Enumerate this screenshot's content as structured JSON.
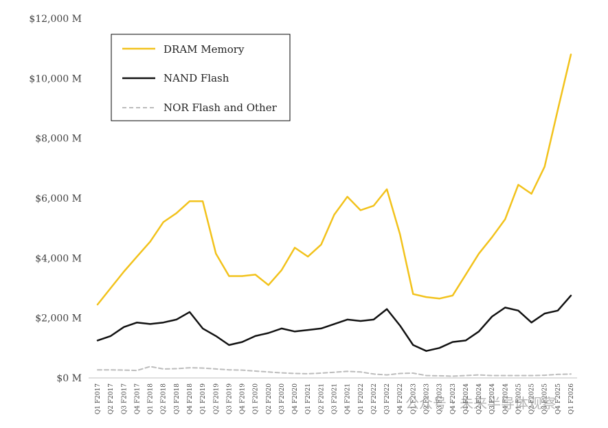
{
  "chart_data": {
    "type": "line",
    "title": "",
    "xlabel": "",
    "ylabel": "",
    "ylim": [
      0,
      12000
    ],
    "y_ticks": [
      {
        "value": 0,
        "label": "$0 M"
      },
      {
        "value": 2000,
        "label": "$2,000 M"
      },
      {
        "value": 4000,
        "label": "$4,000 M"
      },
      {
        "value": 6000,
        "label": "$6,000 M"
      },
      {
        "value": 8000,
        "label": "$8,000 M"
      },
      {
        "value": 10000,
        "label": "$10,000 M"
      },
      {
        "value": 12000,
        "label": "$12,000 M"
      }
    ],
    "categories": [
      "Q1 F2017",
      "Q2 F2017",
      "Q3 F2017",
      "Q4 F2017",
      "Q1 F2018",
      "Q2 F2018",
      "Q3 F2018",
      "Q4 F2018",
      "Q1 F2019",
      "Q2 F2019",
      "Q3 F2019",
      "Q4 F2019",
      "Q1 F2020",
      "Q2 F2020",
      "Q3 F2020",
      "Q4 F2020",
      "Q1 F2021",
      "Q2 F2021",
      "Q3 F2021",
      "Q4 F2021",
      "Q1 F2022",
      "Q2 F2022",
      "Q3 F2022",
      "Q4 F2022",
      "Q1 F2023",
      "Q2 F2023",
      "Q3 F2023",
      "Q4 F2023",
      "Q1 F2024",
      "Q2 F2024",
      "Q3 F2024",
      "Q4 F2024",
      "Q1 F2025",
      "Q2 F2025",
      "Q3 F2025",
      "Q4 F2025",
      "Q1 F2026"
    ],
    "series": [
      {
        "name": "DRAM Memory",
        "color": "#F2C21B",
        "style": "solid",
        "values": [
          2450,
          3000,
          3550,
          4050,
          4550,
          5200,
          5500,
          5900,
          5900,
          4150,
          3400,
          3400,
          3450,
          3100,
          3600,
          4350,
          4050,
          4450,
          5450,
          6050,
          5600,
          5750,
          6300,
          4800,
          2800,
          2700,
          2650,
          2750,
          3450,
          4150,
          4700,
          5300,
          6450,
          6150,
          7050,
          8950,
          10800
        ]
      },
      {
        "name": "NAND Flash",
        "color": "#111111",
        "style": "solid",
        "values": [
          1250,
          1400,
          1700,
          1850,
          1800,
          1850,
          1950,
          2200,
          1650,
          1400,
          1100,
          1200,
          1400,
          1500,
          1650,
          1550,
          1600,
          1650,
          1800,
          1950,
          1900,
          1950,
          2300,
          1750,
          1100,
          900,
          1000,
          1200,
          1250,
          1550,
          2050,
          2350,
          2250,
          1850,
          2150,
          2250,
          2750
        ]
      },
      {
        "name": "NOR Flash and Other",
        "color": "#BBBBBB",
        "style": "dashed",
        "values": [
          270,
          270,
          260,
          250,
          380,
          300,
          310,
          340,
          330,
          300,
          270,
          260,
          230,
          200,
          170,
          150,
          140,
          160,
          190,
          220,
          200,
          130,
          100,
          150,
          160,
          80,
          70,
          60,
          80,
          100,
          80,
          80,
          80,
          80,
          90,
          120,
          130
        ]
      }
    ],
    "legend_position": "top-left",
    "grid": false
  },
  "watermark": {
    "text": "公众号 · 未来半导体观察"
  },
  "colors": {
    "axis": "#BFBFBF",
    "background": "#FFFFFF",
    "legend_border": "#000000"
  }
}
